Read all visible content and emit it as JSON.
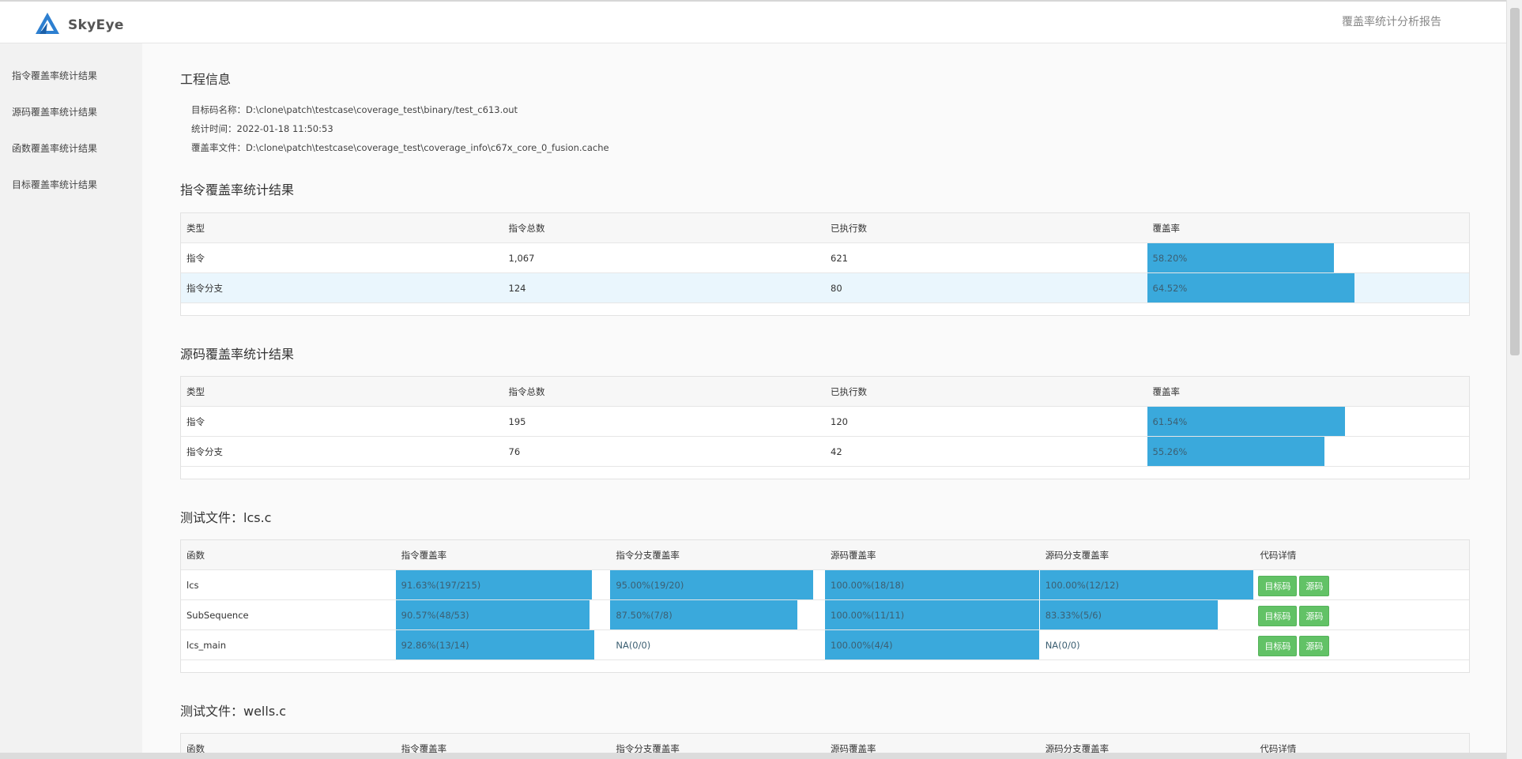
{
  "header": {
    "brand": "SkyEye",
    "title": "覆盖率统计分析报告"
  },
  "sidebar": {
    "items": [
      {
        "label": "指令覆盖率统计结果"
      },
      {
        "label": "源码覆盖率统计结果"
      },
      {
        "label": "函数覆盖率统计结果"
      },
      {
        "label": "目标覆盖率统计结果"
      }
    ]
  },
  "project": {
    "title": "工程信息",
    "lines": [
      "目标码名称：D:\\clone\\patch\\testcase\\coverage_test\\binary/test_c613.out",
      "统计时间：2022-01-18 11:50:53",
      "覆盖率文件：D:\\clone\\patch\\testcase\\coverage_test\\coverage_info\\c67x_core_0_fusion.cache"
    ]
  },
  "instr_cov": {
    "title": "指令覆盖率统计结果",
    "headers": [
      "类型",
      "指令总数",
      "已执行数",
      "覆盖率"
    ],
    "rows": [
      {
        "type": "指令",
        "total": "1,067",
        "executed": "621",
        "rate": "58.20%",
        "pct": 58.2
      },
      {
        "type": "指令分支",
        "total": "124",
        "executed": "80",
        "rate": "64.52%",
        "pct": 64.52
      }
    ]
  },
  "src_cov": {
    "title": "源码覆盖率统计结果",
    "headers": [
      "类型",
      "指令总数",
      "已执行数",
      "覆盖率"
    ],
    "rows": [
      {
        "type": "指令",
        "total": "195",
        "executed": "120",
        "rate": "61.54%",
        "pct": 61.54
      },
      {
        "type": "指令分支",
        "total": "76",
        "executed": "42",
        "rate": "55.26%",
        "pct": 55.26
      }
    ]
  },
  "file_lcs": {
    "title": "测试文件：lcs.c",
    "headers": [
      "函数",
      "指令覆盖率",
      "指令分支覆盖率",
      "源码覆盖率",
      "源码分支覆盖率",
      "代码详情"
    ],
    "btn_target": "目标码",
    "btn_source": "源码",
    "rows": [
      {
        "func": "lcs",
        "c1": "91.63%(197/215)",
        "p1": 91.63,
        "c2": "95.00%(19/20)",
        "p2": 95.0,
        "c3": "100.00%(18/18)",
        "p3": 100,
        "c4": "100.00%(12/12)",
        "p4": 100
      },
      {
        "func": "SubSequence",
        "c1": "90.57%(48/53)",
        "p1": 90.57,
        "c2": "87.50%(7/8)",
        "p2": 87.5,
        "c3": "100.00%(11/11)",
        "p3": 100,
        "c4": "83.33%(5/6)",
        "p4": 83.33
      },
      {
        "func": "lcs_main",
        "c1": "92.86%(13/14)",
        "p1": 92.86,
        "c2": "NA(0/0)",
        "p2": 0,
        "c3": "100.00%(4/4)",
        "p3": 100,
        "c4": "NA(0/0)",
        "p4": 0
      }
    ]
  },
  "file_wells": {
    "title": "测试文件：wells.c",
    "headers": [
      "函数",
      "指令覆盖率",
      "指令分支覆盖率",
      "源码覆盖率",
      "源码分支覆盖率",
      "代码详情"
    ]
  },
  "colors": {
    "bar": "#3aa9dc",
    "button": "#62c266",
    "highlight_row": "#eaf6fd"
  }
}
